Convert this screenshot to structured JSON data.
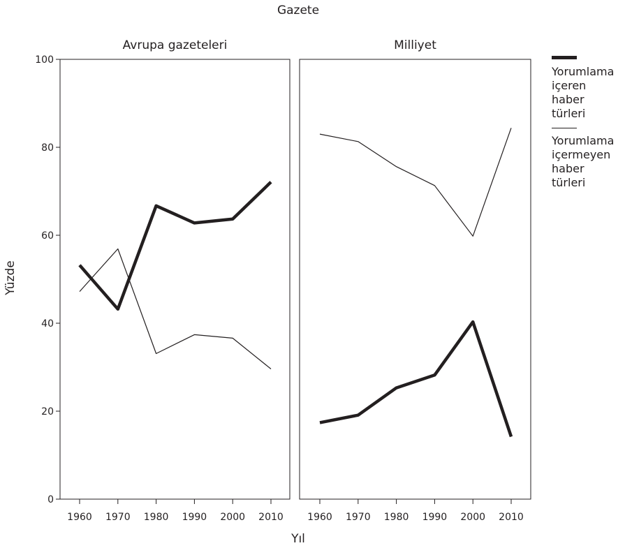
{
  "chart_data": {
    "type": "line",
    "super_title": "Gazete",
    "ylabel": "Yüzde",
    "xlabel": "Yıl",
    "ylim": [
      0,
      100
    ],
    "yticks": [
      0,
      20,
      40,
      60,
      80,
      100
    ],
    "x": [
      1960,
      1970,
      1980,
      1990,
      2000,
      2010
    ],
    "legend": {
      "position": "right",
      "entries": [
        {
          "label_lines": [
            "Yorumlama",
            "içeren",
            "haber",
            "türleri"
          ],
          "style": "thick"
        },
        {
          "label_lines": [
            "Yorumlama",
            "içermeyen",
            "haber",
            "türleri"
          ],
          "style": "thin"
        }
      ]
    },
    "panels": [
      {
        "title": "Avrupa gazeteleri",
        "series": [
          {
            "name": "Yorumlama içeren haber türleri",
            "style": "thick",
            "values": [
              53.2,
              43.2,
              66.7,
              62.8,
              63.7,
              72.1
            ]
          },
          {
            "name": "Yorumlama içermeyen haber türleri",
            "style": "thin",
            "values": [
              47.2,
              56.9,
              33.1,
              37.4,
              36.6,
              29.6
            ]
          }
        ]
      },
      {
        "title": "Milliyet",
        "series": [
          {
            "name": "Yorumlama içeren haber türleri",
            "style": "thick",
            "values": [
              17.4,
              19.1,
              25.3,
              28.2,
              40.3,
              14.2
            ]
          },
          {
            "name": "Yorumlama içermeyen haber türleri",
            "style": "thin",
            "values": [
              83.0,
              81.3,
              75.6,
              71.3,
              59.8,
              84.4
            ]
          }
        ]
      }
    ]
  }
}
